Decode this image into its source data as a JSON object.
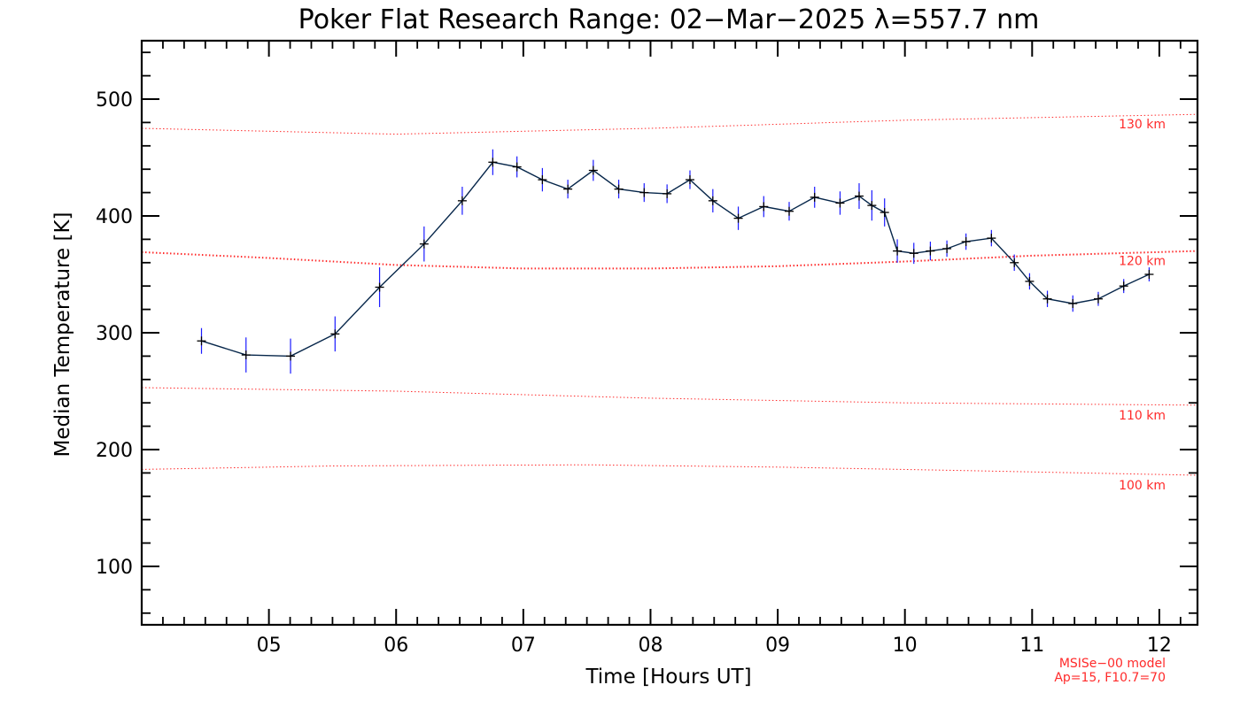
{
  "chart_data": {
    "type": "line",
    "title": "Poker Flat Research Range: 02−Mar−2025 λ=557.7 nm",
    "xlabel": "Time [Hours UT]",
    "ylabel": "Median Temperature [K]",
    "xlim": [
      4.0,
      12.3
    ],
    "ylim": [
      50,
      550
    ],
    "x_ticks": [
      5,
      6,
      7,
      8,
      9,
      10,
      11,
      12
    ],
    "x_tick_labels": [
      "05",
      "06",
      "07",
      "08",
      "09",
      "10",
      "11",
      "12"
    ],
    "y_ticks": [
      100,
      200,
      300,
      400,
      500
    ],
    "y_tick_labels": [
      "100",
      "200",
      "300",
      "400",
      "500"
    ],
    "series": [
      {
        "color": "#06264a",
        "marker": "+",
        "errorbar_color": "#1a1aff",
        "points": [
          {
            "x": 4.47,
            "y": 293,
            "err": 11
          },
          {
            "x": 4.82,
            "y": 281,
            "err": 15
          },
          {
            "x": 5.17,
            "y": 280,
            "err": 15
          },
          {
            "x": 5.52,
            "y": 299,
            "err": 15
          },
          {
            "x": 5.87,
            "y": 339,
            "err": 17
          },
          {
            "x": 6.22,
            "y": 376,
            "err": 15
          },
          {
            "x": 6.52,
            "y": 413,
            "err": 12
          },
          {
            "x": 6.76,
            "y": 446,
            "err": 11
          },
          {
            "x": 6.95,
            "y": 442,
            "err": 9
          },
          {
            "x": 7.15,
            "y": 431,
            "err": 10
          },
          {
            "x": 7.35,
            "y": 423,
            "err": 8
          },
          {
            "x": 7.55,
            "y": 439,
            "err": 9
          },
          {
            "x": 7.75,
            "y": 423,
            "err": 8
          },
          {
            "x": 7.95,
            "y": 420,
            "err": 8
          },
          {
            "x": 8.13,
            "y": 419,
            "err": 8
          },
          {
            "x": 8.31,
            "y": 431,
            "err": 8
          },
          {
            "x": 8.49,
            "y": 413,
            "err": 10
          },
          {
            "x": 8.69,
            "y": 398,
            "err": 10
          },
          {
            "x": 8.89,
            "y": 408,
            "err": 9
          },
          {
            "x": 9.09,
            "y": 404,
            "err": 8
          },
          {
            "x": 9.29,
            "y": 416,
            "err": 9
          },
          {
            "x": 9.49,
            "y": 411,
            "err": 10
          },
          {
            "x": 9.64,
            "y": 417,
            "err": 11
          },
          {
            "x": 9.74,
            "y": 409,
            "err": 13
          },
          {
            "x": 9.84,
            "y": 403,
            "err": 12
          },
          {
            "x": 9.94,
            "y": 370,
            "err": 10
          },
          {
            "x": 10.07,
            "y": 368,
            "err": 9
          },
          {
            "x": 10.2,
            "y": 370,
            "err": 8
          },
          {
            "x": 10.33,
            "y": 372,
            "err": 7
          },
          {
            "x": 10.48,
            "y": 378,
            "err": 7
          },
          {
            "x": 10.68,
            "y": 381,
            "err": 7
          },
          {
            "x": 10.86,
            "y": 360,
            "err": 7
          },
          {
            "x": 10.98,
            "y": 344,
            "err": 7
          },
          {
            "x": 11.12,
            "y": 329,
            "err": 7
          },
          {
            "x": 11.32,
            "y": 325,
            "err": 7
          },
          {
            "x": 11.52,
            "y": 329,
            "err": 6
          },
          {
            "x": 11.72,
            "y": 340,
            "err": 6
          },
          {
            "x": 11.92,
            "y": 350,
            "err": 6
          }
        ]
      }
    ],
    "model_curves": [
      {
        "label": "130 km",
        "x": [
          4.0,
          6.0,
          8.0,
          10.0,
          12.3
        ],
        "y": [
          475,
          470,
          475,
          482,
          487
        ]
      },
      {
        "label": "120 km",
        "x": [
          4.0,
          5.0,
          6.0,
          7.0,
          8.0,
          9.0,
          10.0,
          11.0,
          12.3
        ],
        "y": [
          369,
          364,
          358,
          355,
          355,
          357,
          361,
          366,
          370
        ]
      },
      {
        "label": "110 km",
        "x": [
          4.0,
          6.0,
          8.0,
          10.0,
          12.3
        ],
        "y": [
          253,
          250,
          244,
          240,
          238
        ]
      },
      {
        "label": "100 km",
        "x": [
          4.0,
          5.5,
          7.5,
          9.0,
          10.5,
          12.3
        ],
        "y": [
          183,
          186,
          187,
          185,
          182,
          178
        ]
      }
    ],
    "model_color": "#ff2a2a",
    "grid": false,
    "note": [
      "MSISe−00 model",
      "Ap=15, F10.7=70"
    ]
  }
}
